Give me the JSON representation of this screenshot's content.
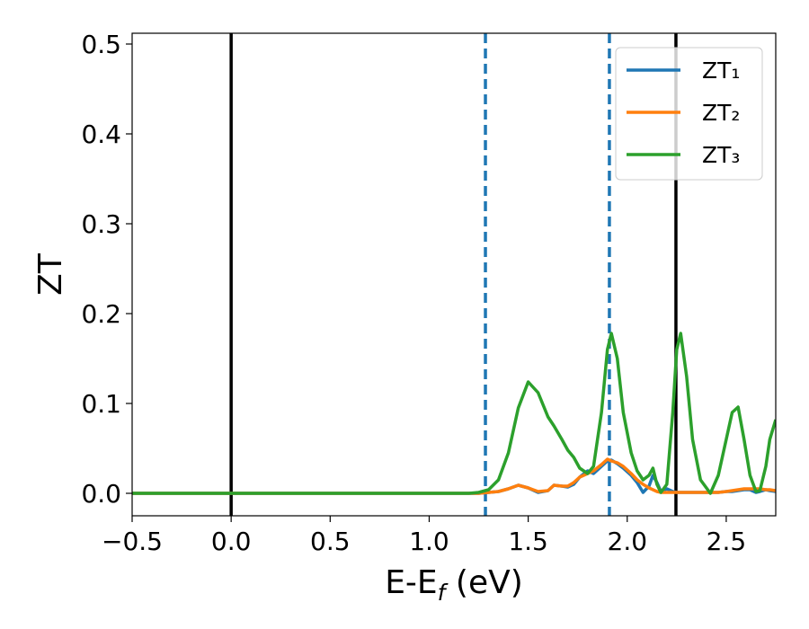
{
  "chart_data": {
    "type": "line",
    "xlabel": [
      "E-E",
      "f",
      " (eV)"
    ],
    "ylabel": "ZT",
    "x": [
      -0.5,
      0,
      0.5,
      1.0,
      1.2,
      1.25,
      1.3,
      1.35,
      1.4,
      1.45,
      1.5,
      1.55,
      1.6,
      1.63,
      1.67,
      1.7,
      1.73,
      1.76,
      1.8,
      1.83,
      1.87,
      1.9,
      1.92,
      1.95,
      1.98,
      2.02,
      2.05,
      2.08,
      2.11,
      2.13,
      2.15,
      2.17,
      2.2,
      2.23,
      2.25,
      2.27,
      2.3,
      2.33,
      2.37,
      2.42,
      2.46,
      2.5,
      2.53,
      2.56,
      2.59,
      2.62,
      2.65,
      2.67,
      2.7,
      2.72,
      2.75
    ],
    "series": [
      {
        "name": "ZT₁",
        "color": "#1f77b4",
        "values": [
          0,
          0,
          0,
          0,
          0,
          0,
          0.001,
          0.002,
          0.005,
          0.009,
          0.006,
          0.001,
          0.003,
          0.009,
          0.008,
          0.007,
          0.01,
          0.018,
          0.025,
          0.022,
          0.03,
          0.036,
          0.037,
          0.033,
          0.028,
          0.02,
          0.012,
          0.001,
          0.008,
          0.02,
          0.012,
          0.002,
          0.005,
          0.002,
          0.001,
          0.001,
          0.001,
          0.001,
          0.001,
          0.001,
          0.001,
          0.002,
          0.002,
          0.003,
          0.004,
          0.004,
          0.001,
          0.002,
          0.004,
          0.003,
          0.002
        ]
      },
      {
        "name": "ZT₂",
        "color": "#ff7f0e",
        "values": [
          0,
          0,
          0,
          0,
          0,
          0,
          0.001,
          0.002,
          0.005,
          0.009,
          0.006,
          0.002,
          0.003,
          0.009,
          0.008,
          0.008,
          0.012,
          0.018,
          0.022,
          0.025,
          0.032,
          0.038,
          0.036,
          0.034,
          0.03,
          0.022,
          0.015,
          0.01,
          0.006,
          0.004,
          0.002,
          0.001,
          0.001,
          0.001,
          0.001,
          0.001,
          0.001,
          0.001,
          0.001,
          0.001,
          0.001,
          0.002,
          0.003,
          0.004,
          0.005,
          0.005,
          0.005,
          0.005,
          0.004,
          0.004,
          0.003
        ]
      },
      {
        "name": "ZT₃",
        "color": "#2ca02c",
        "values": [
          0,
          0,
          0,
          0,
          0,
          0.001,
          0.004,
          0.015,
          0.045,
          0.095,
          0.124,
          0.112,
          0.085,
          0.075,
          0.06,
          0.048,
          0.04,
          0.028,
          0.022,
          0.03,
          0.09,
          0.16,
          0.178,
          0.15,
          0.09,
          0.045,
          0.025,
          0.015,
          0.02,
          0.028,
          0.01,
          0.001,
          0.01,
          0.09,
          0.16,
          0.178,
          0.13,
          0.06,
          0.015,
          0,
          0.02,
          0.06,
          0.09,
          0.096,
          0.06,
          0.02,
          0.002,
          0.003,
          0.03,
          0.06,
          0.082
        ]
      }
    ],
    "vlines": [
      {
        "x": 0,
        "color": "#000000",
        "style": "solid"
      },
      {
        "x": 2.246,
        "color": "#000000",
        "style": "solid"
      },
      {
        "x": 1.284,
        "color": "#1f77b4",
        "style": "dashed"
      },
      {
        "x": 1.91,
        "color": "#1f77b4",
        "style": "dashed"
      }
    ],
    "xlim": [
      -0.5,
      2.75
    ],
    "ylim": [
      -0.025,
      0.512
    ],
    "xticks": [
      {
        "value": -0.5,
        "label": "−0.5"
      },
      {
        "value": 0,
        "label": "0.0"
      },
      0.5,
      {
        "value": 1.0,
        "label": "1.0"
      },
      1.5,
      {
        "value": 2.0,
        "label": "2.0"
      },
      2.5
    ],
    "yticks": [
      {
        "value": 0,
        "label": "0.0"
      },
      0.1,
      0.2,
      0.3,
      0.4,
      0.5
    ],
    "legend": "upper right",
    "grid": false
  }
}
